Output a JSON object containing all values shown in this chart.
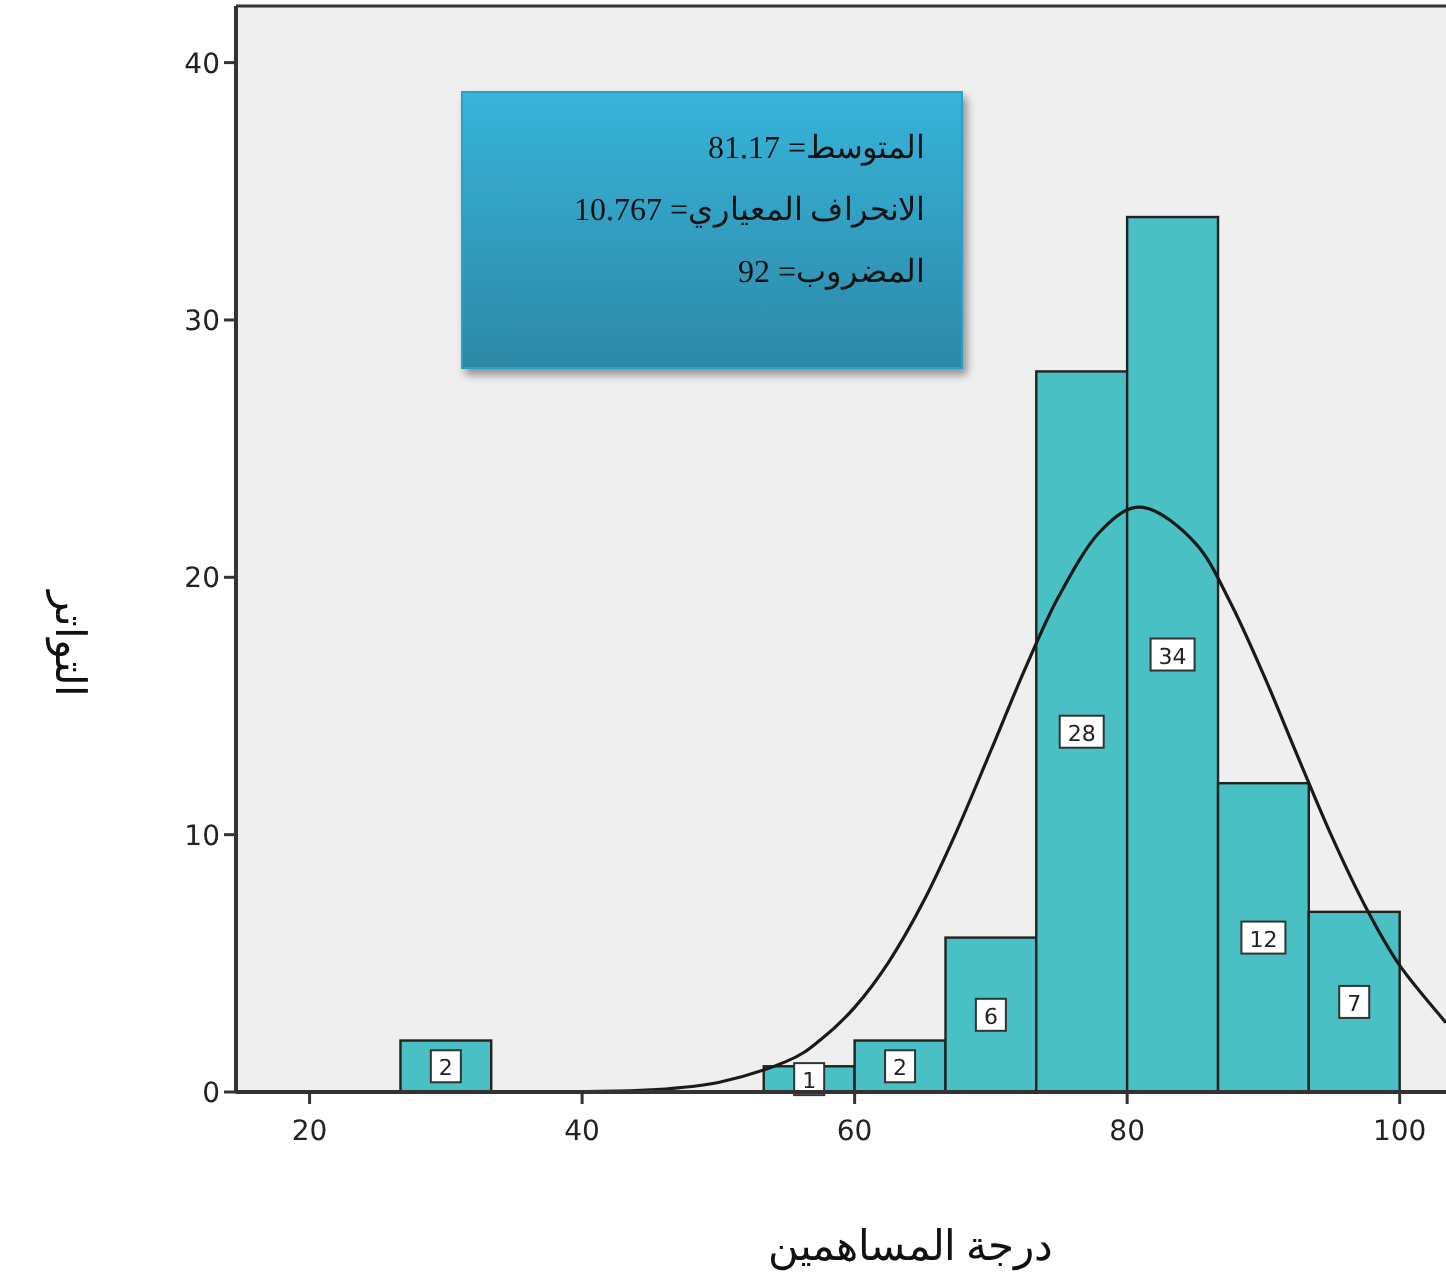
{
  "chart_data": {
    "type": "histogram",
    "xlabel": "درجة المساهمين",
    "ylabel": "التواتر",
    "bins": [
      26.67,
      33.33,
      40,
      46.67,
      53.33,
      60,
      66.67,
      73.33,
      80,
      86.67,
      93.33,
      100
    ],
    "values": [
      2,
      0,
      0,
      0,
      1,
      2,
      6,
      28,
      34,
      12,
      7
    ],
    "color": "#48c0c4",
    "value_labels": [
      "2",
      null,
      null,
      null,
      "1",
      "2",
      "6",
      "28",
      "34",
      "12",
      "7"
    ],
    "series": [
      {
        "type": "line",
        "color": "#1a1a1a",
        "x": [
          35,
          40,
          45,
          50,
          55,
          57.5,
          60,
          62.5,
          65,
          67.5,
          70,
          72.5,
          75,
          78,
          81.17,
          85,
          87.5,
          90,
          92.5,
          95,
          97.5,
          100,
          103.4
        ],
        "values": [
          0,
          0.02,
          0.08,
          0.37,
          1.19,
          2.03,
          3.29,
          5.05,
          7.35,
          10.15,
          13.27,
          16.43,
          19.28,
          21.77,
          22.72,
          21.33,
          19.1,
          16.23,
          13.06,
          9.95,
          7.19,
          4.92,
          2.69
        ]
      }
    ],
    "xlim": [
      14.6,
      103.4
    ],
    "xticks": [
      20,
      40,
      60,
      80,
      100
    ],
    "ylim": [
      0,
      42.2
    ],
    "yticks": [
      0,
      10,
      20,
      30,
      40
    ],
    "grid": false,
    "annotations": [
      "المتوسط= 81.17",
      "الانحراف المعياري= 10.767",
      "المضروب= 92"
    ]
  }
}
